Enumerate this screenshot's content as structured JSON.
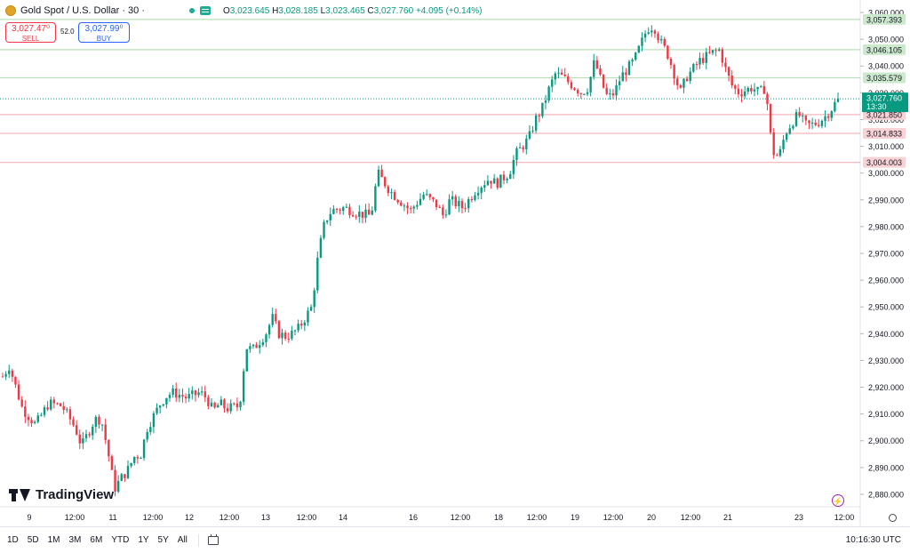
{
  "header": {
    "symbol": "Gold Spot / U.S. Dollar · 30 ·",
    "open_label": "O",
    "open": "3,023.645",
    "high_label": "H",
    "high": "3,028.185",
    "low_label": "L",
    "low": "3,023.465",
    "close_label": "C",
    "close": "3,027.760",
    "change": "+4.095 (+0.14%)"
  },
  "trade": {
    "sell_price": "3,027.47⁰",
    "sell_label": "SELL",
    "spread": "52.0",
    "buy_price": "3,027.99⁰",
    "buy_label": "BUY"
  },
  "branding": {
    "logo_text": "TradingView"
  },
  "colors": {
    "up": "#089981",
    "down": "#f23645",
    "resistance_line": "#b8e0b8",
    "support_line": "#f5b7bb",
    "current_price_bg": "#089981"
  },
  "bottom_toolbar": {
    "ranges": [
      "1D",
      "5D",
      "1M",
      "3M",
      "6M",
      "YTD",
      "1Y",
      "5Y",
      "All"
    ],
    "clock": "10:16:30 UTC"
  },
  "chart_data": {
    "type": "candlestick",
    "y_axis": {
      "min": 2876,
      "max": 3062,
      "ticks": [
        "2,880.000",
        "2,890.000",
        "2,900.000",
        "2,910.000",
        "2,920.000",
        "2,930.000",
        "2,940.000",
        "2,950.000",
        "2,960.000",
        "2,970.000",
        "2,980.000",
        "2,990.000",
        "3,000.000",
        "3,010.000",
        "3,020.000",
        "3,030.000",
        "3,040.000",
        "3,050.000",
        "3,060.000"
      ]
    },
    "x_axis": {
      "labels": [
        "9",
        "12:00",
        "11",
        "12:00",
        "12",
        "12:00",
        "13",
        "12:00",
        "14",
        "16",
        "12:00",
        "18",
        "12:00",
        "19",
        "12:00",
        "20",
        "12:00",
        "21",
        "23",
        "12:00"
      ]
    },
    "levels": [
      {
        "value": 3057.393,
        "label": "3,057.393",
        "kind": "resistance"
      },
      {
        "value": 3046.105,
        "label": "3,046.105",
        "kind": "resistance"
      },
      {
        "value": 3035.579,
        "label": "3,035.579",
        "kind": "resistance"
      },
      {
        "value": 3021.85,
        "label": "3,021.850",
        "kind": "support"
      },
      {
        "value": 3014.833,
        "label": "3,014.833",
        "kind": "support"
      },
      {
        "value": 3004.003,
        "label": "3,004.003",
        "kind": "support"
      }
    ],
    "current_price": {
      "value": 3027.76,
      "label": "3,027.760",
      "countdown": "13:30"
    },
    "path": [
      [
        0,
        2924
      ],
      [
        1,
        2928
      ],
      [
        3,
        2912
      ],
      [
        5,
        2906
      ],
      [
        7,
        2914
      ],
      [
        9,
        2913
      ],
      [
        11,
        2905
      ],
      [
        12,
        2898
      ],
      [
        14,
        2908
      ],
      [
        15,
        2908
      ],
      [
        16,
        2896
      ],
      [
        17,
        2882
      ],
      [
        18,
        2886
      ],
      [
        19,
        2889
      ],
      [
        20,
        2894
      ],
      [
        21,
        2895
      ],
      [
        22,
        2905
      ],
      [
        24,
        2914
      ],
      [
        25,
        2917
      ],
      [
        26,
        2918
      ],
      [
        28,
        2916
      ],
      [
        30,
        2918
      ],
      [
        31,
        2916
      ],
      [
        32,
        2911
      ],
      [
        33,
        2914
      ],
      [
        34,
        2912
      ],
      [
        36,
        2913
      ],
      [
        37,
        2935
      ],
      [
        38,
        2934
      ],
      [
        40,
        2940
      ],
      [
        41,
        2946
      ],
      [
        42,
        2940
      ],
      [
        43,
        2939
      ],
      [
        44,
        2940
      ],
      [
        45,
        2942
      ],
      [
        47,
        2950
      ],
      [
        48,
        2970
      ],
      [
        49,
        2982
      ],
      [
        50,
        2986
      ],
      [
        52,
        2987
      ],
      [
        54,
        2985
      ],
      [
        56,
        2984
      ],
      [
        57,
        3000
      ],
      [
        59,
        2993
      ],
      [
        62,
        2986
      ],
      [
        64,
        2992
      ],
      [
        66,
        2988
      ],
      [
        67,
        2984
      ],
      [
        68,
        2990
      ],
      [
        70,
        2987
      ],
      [
        72,
        2994
      ],
      [
        74,
        2998
      ],
      [
        75,
        2996
      ],
      [
        77,
        3000
      ],
      [
        78,
        3007
      ],
      [
        80,
        3013
      ],
      [
        81,
        3020
      ],
      [
        82,
        3024
      ],
      [
        83,
        3031
      ],
      [
        84,
        3037
      ],
      [
        85,
        3036
      ],
      [
        86,
        3034
      ],
      [
        88,
        3030
      ],
      [
        89,
        3032
      ],
      [
        90,
        3042
      ],
      [
        91,
        3034
      ],
      [
        92,
        3028
      ],
      [
        93,
        3030
      ],
      [
        94,
        3036
      ],
      [
        96,
        3042
      ],
      [
        97,
        3048
      ],
      [
        98,
        3054
      ],
      [
        99,
        3055
      ],
      [
        100,
        3049
      ],
      [
        101,
        3045
      ],
      [
        102,
        3038
      ],
      [
        103,
        3030
      ],
      [
        104,
        3036
      ],
      [
        106,
        3042
      ],
      [
        108,
        3045
      ],
      [
        109,
        3046
      ],
      [
        110,
        3038
      ],
      [
        111,
        3032
      ],
      [
        112,
        3030
      ],
      [
        114,
        3032
      ],
      [
        115,
        3030
      ],
      [
        116,
        3032
      ],
      [
        117,
        3008
      ],
      [
        118,
        3006
      ],
      [
        119,
        3015
      ],
      [
        120,
        3019
      ],
      [
        121,
        3022
      ],
      [
        122,
        3018
      ],
      [
        123,
        3018
      ],
      [
        124,
        3019
      ],
      [
        125,
        3021
      ],
      [
        126,
        3024
      ],
      [
        127,
        3027.76
      ]
    ]
  }
}
